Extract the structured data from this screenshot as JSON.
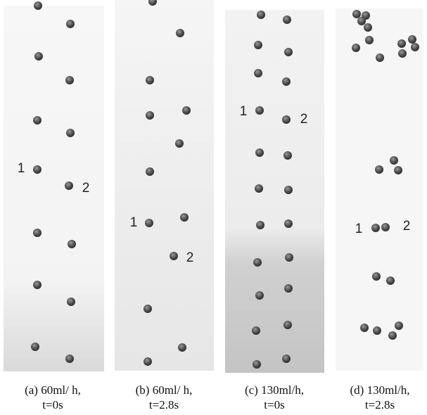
{
  "panels": [
    {
      "markers": [
        "1",
        "2"
      ],
      "caption": [
        "(a) 60ml/ h,",
        "t=0s"
      ]
    },
    {
      "markers": [
        "1",
        "2"
      ],
      "caption": [
        "(b) 60ml/ h,",
        "t=2.8s"
      ]
    },
    {
      "markers": [
        "1",
        "2"
      ],
      "caption": [
        "(c) 130ml/h,",
        "t=0s"
      ]
    },
    {
      "markers": [
        "1",
        "2"
      ],
      "caption": [
        "(d) 130ml/h,",
        "t=2.8s"
      ]
    }
  ]
}
